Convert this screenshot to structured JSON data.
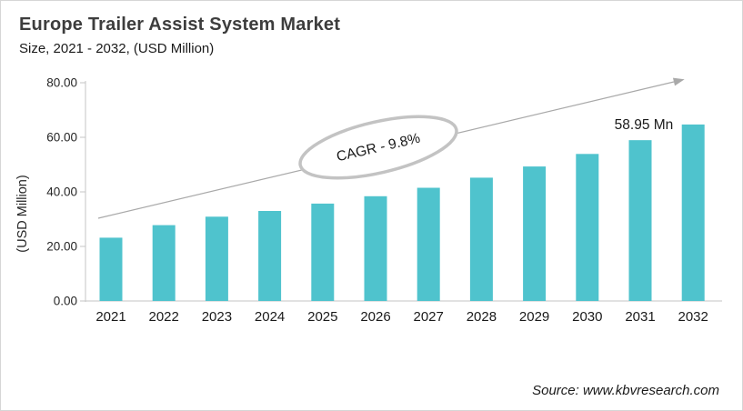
{
  "header": {
    "title": "Europe Trailer Assist System Market",
    "subtitle": "Size, 2021 - 2032, (USD Million)"
  },
  "footer": {
    "source": "Source: www.kbvresearch.com"
  },
  "chart_data": {
    "type": "bar",
    "title": "Europe Trailer Assist System Market",
    "subtitle": "Size, 2021 - 2032, (USD Million)",
    "categories": [
      "2021",
      "2022",
      "2023",
      "2024",
      "2025",
      "2026",
      "2027",
      "2028",
      "2029",
      "2030",
      "2031",
      "2032"
    ],
    "values": [
      23.2,
      27.8,
      30.9,
      33.0,
      35.7,
      38.4,
      41.5,
      45.2,
      49.3,
      53.9,
      58.95,
      64.7
    ],
    "xlabel": "",
    "ylabel": "(USD Million)",
    "ylim": [
      0,
      80
    ],
    "yticks": [
      0,
      20,
      40,
      60,
      80
    ],
    "ytick_labels": [
      "0.00",
      "20.00",
      "40.00",
      "60.00",
      "80.00"
    ],
    "grid": false,
    "legend": false,
    "bar_color": "#4FC3CD",
    "trend_label": "CAGR - 9.8%",
    "annotations": [
      {
        "text": "58.95 Mn",
        "category": "2031"
      }
    ]
  },
  "colors": {
    "bar": "#4FC3CD",
    "axis": "#c6c6c6",
    "trend": "#a9a9a9",
    "ellipse_stroke": "#c3c3c3",
    "title_text": "#3d3d3d",
    "body_text": "#1a1a1a",
    "tick_text": "#262626"
  }
}
